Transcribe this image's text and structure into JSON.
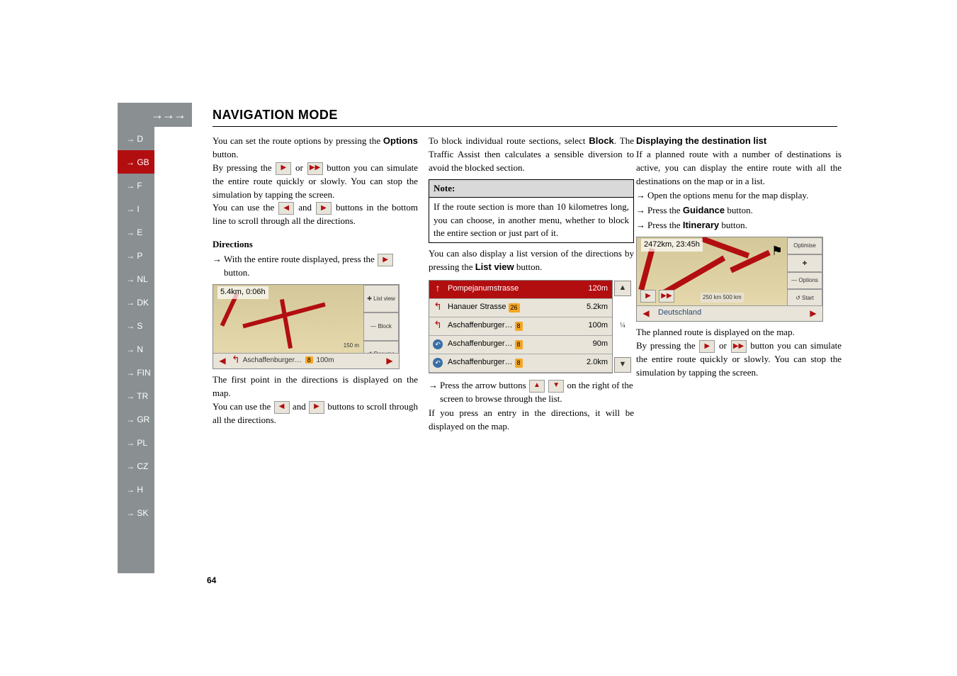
{
  "header": {
    "arrows": "→→→",
    "title": "NAVIGATION MODE"
  },
  "sidebar": {
    "items": [
      {
        "label": "→ D"
      },
      {
        "label": "→ GB"
      },
      {
        "label": "→ F"
      },
      {
        "label": "→ I"
      },
      {
        "label": "→ E"
      },
      {
        "label": "→ P"
      },
      {
        "label": "→ NL"
      },
      {
        "label": "→ DK"
      },
      {
        "label": "→ S"
      },
      {
        "label": "→ N"
      },
      {
        "label": "→ FIN"
      },
      {
        "label": "→ TR"
      },
      {
        "label": "→ GR"
      },
      {
        "label": "→ PL"
      },
      {
        "label": "→ CZ"
      },
      {
        "label": "→ H"
      },
      {
        "label": "→ SK"
      }
    ],
    "active_index": 1
  },
  "glyphs": {
    "play": "▶",
    "ff": "▶▶",
    "left": "◀",
    "right": "▶",
    "up": "▲",
    "down": "▼",
    "arrow": "→"
  },
  "col1": {
    "p1a": "You can set the route options by pressing the ",
    "p1b_bold": "Options",
    "p1c": " button.",
    "p2a": "By pressing the ",
    "p2b": " or ",
    "p2c": " button you can simulate the entire route quickly or slowly. You can stop the simulation by tapping the screen.",
    "p3a": "You can use the ",
    "p3b": " and ",
    "p3c": " buttons in the bottom line to scroll through all the directions.",
    "h_dir": "Directions",
    "b1a": "With the entire route displayed, press the ",
    "b1b": " button.",
    "ss1": {
      "top": "5.4km,  0:06h",
      "side": [
        "✚\nList view",
        "—\nBlock",
        "↺\nResume"
      ],
      "bottom_text": "Aschaffenburger…",
      "bottom_badge": "8",
      "bottom_dist": "100m",
      "scale": "150 m"
    },
    "p4": "The first point in the directions is displayed on the map.",
    "p5a": "You can use the ",
    "p5b": " and ",
    "p5c": " buttons to scroll through all the directions."
  },
  "col2": {
    "p1a": "To block individual route sections, select ",
    "p1b_bold": "Block",
    "p1c": ". The Traffic Assist then calculates a sensible diversion to avoid the blocked section.",
    "note_head": "Note:",
    "note_body": "If the route section is more than 10 kilometres long, you can choose, in another menu, whether to block the entire section or just part of it.",
    "p2a": "You can also display a list version of the directions by pressing the ",
    "p2b_bold": "List view",
    "p2c": " button.",
    "list": {
      "rows": [
        {
          "icon": "↑",
          "text": "Pompejanumstrasse",
          "badge": "",
          "dist": "120m",
          "red": true
        },
        {
          "icon": "↰",
          "text": "Hanauer Strasse",
          "badge": "26",
          "dist": "5.2km"
        },
        {
          "icon": "↰",
          "text": "Aschaffenburger…",
          "badge": "8",
          "dist": "100m"
        },
        {
          "icon": "◉",
          "text": "Aschaffenburger…",
          "badge": "8",
          "dist": "90m"
        },
        {
          "icon": "◉",
          "text": "Aschaffenburger…",
          "badge": "8",
          "dist": "2.0km"
        }
      ],
      "frac": "¼"
    },
    "b1a": "Press the arrow buttons ",
    "b1b": " on the right of the screen to browse through the list.",
    "p3": "If you press an entry in the directions, it will be displayed on the map."
  },
  "col3": {
    "h": "Displaying the destination list",
    "p1": "If a planned route with a number of destinations is active, you can display the entire route with all the destinations on the map or in a list.",
    "b1": "Open the options menu for the map display.",
    "b2a": "Press the ",
    "b2b_bold": "Guidance",
    "b2c": " button.",
    "b3a": "Press the ",
    "b3b_bold": "Itinerary",
    "b3c": " button.",
    "ss2": {
      "top": "2472km,  23:45h",
      "side": [
        "Optimise",
        "✚",
        "—\nOptions",
        "↺\nStart"
      ],
      "bottom_text": "Deutschland",
      "scale": "250 km  500 km"
    },
    "p2": "The planned route is displayed on the map.",
    "p3a": "By pressing the ",
    "p3b": " or ",
    "p3c": " button you can simulate the entire route quickly or slowly. You can stop the simulation by tapping the screen."
  },
  "page_number": "64"
}
